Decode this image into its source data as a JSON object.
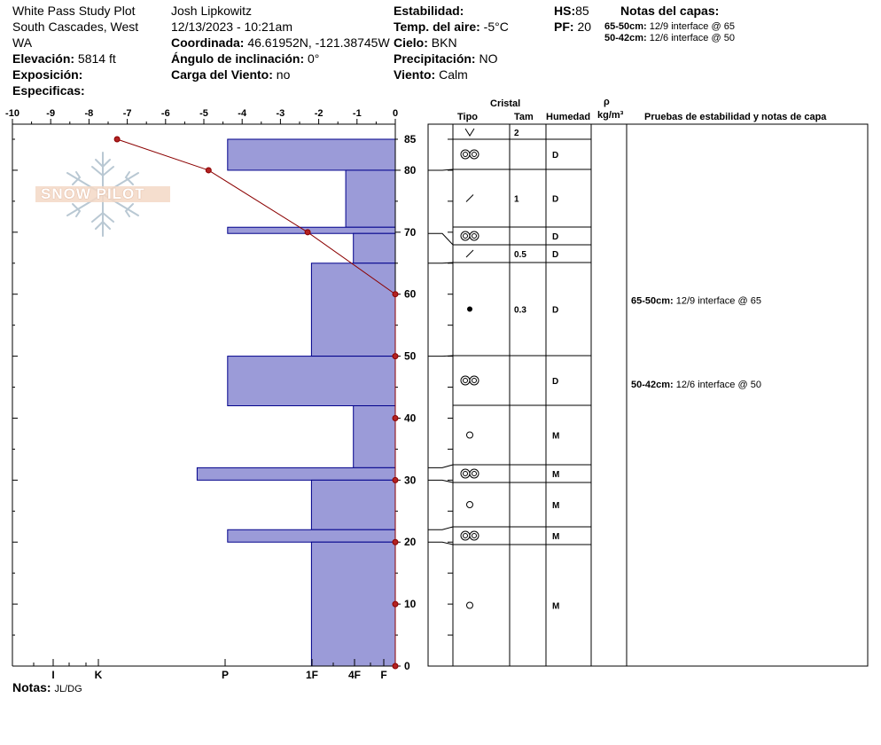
{
  "header": {
    "site": "White Pass Study Plot",
    "region_line1": "South Cascades, West",
    "region_line2": "WA",
    "elevation_label": "Elevación:",
    "elevation_value": "5814 ft",
    "aspect_label": "Exposición:",
    "specifics_label": "Especificas:",
    "observer": "Josh Lipkowitz",
    "datetime": "12/13/2023 - 10:21am",
    "coord_label": "Coordinada:",
    "coord_value": "46.61952N, -121.38745W",
    "slope_label": "Ángulo de inclinación:",
    "slope_value": "0°",
    "wind_load_label": "Carga del Viento:",
    "wind_load_value": "no",
    "stability_label": "Estabilidad:",
    "air_temp_label": "Temp. del aire:",
    "air_temp_value": "-5°C",
    "sky_label": "Cielo:",
    "sky_value": "BKN",
    "precip_label": "Precipitación:",
    "precip_value": "NO",
    "wind_label": "Viento:",
    "wind_value": "Calm",
    "hs_label": "HS:",
    "hs_value": "85",
    "pf_label": "PF:",
    "pf_value": "20",
    "layer_notes_label": "Notas del capas:",
    "layer_notes": [
      {
        "range": "65-50cm:",
        "text": "12/9 interface @ 65"
      },
      {
        "range": "50-42cm:",
        "text": "12/6 interface @ 50"
      }
    ]
  },
  "columns": {
    "crystal": "Cristal",
    "type": "Tipo",
    "size": "Tam",
    "moisture": "Humedad",
    "density_symbol": "ρ",
    "density_unit": "kg/m³",
    "tests": "Pruebas de estabilidad y notas de capa"
  },
  "footer": {
    "notes_label": "Notas:",
    "notes_value": "JL/DG"
  },
  "watermark_text": "SNOW PILOT",
  "colors": {
    "hardness_fill": "#9b9bd8",
    "hardness_stroke": "#00008b",
    "temp_line": "#8b0000",
    "temp_point": "#b22222"
  },
  "chart_data": {
    "type": "snow-profile",
    "temp_axis": {
      "ticks": [
        "-10",
        "-9",
        "-8",
        "-7",
        "-6",
        "-5",
        "-4",
        "-3",
        "-2",
        "-1",
        "0"
      ],
      "range": [
        -10,
        0
      ]
    },
    "depth_axis": {
      "range": [
        0,
        85
      ],
      "labels": [
        "0",
        "10",
        "20",
        "30",
        "40",
        "50",
        "60",
        "70",
        "80",
        "85"
      ]
    },
    "hardness_axis": [
      "I",
      "K",
      "P",
      "1F",
      "4F",
      "F"
    ],
    "temperature_profile": [
      {
        "depth": 85,
        "temp": -7.3
      },
      {
        "depth": 80,
        "temp": -4.9
      },
      {
        "depth": 70,
        "temp": -2.3
      },
      {
        "depth": 60,
        "temp": 0
      },
      {
        "depth": 50,
        "temp": 0
      },
      {
        "depth": 40,
        "temp": 0
      },
      {
        "depth": 30,
        "temp": 0
      },
      {
        "depth": 20,
        "temp": 0
      },
      {
        "depth": 10,
        "temp": 0
      },
      {
        "depth": 0,
        "temp": 0
      }
    ],
    "layers": [
      {
        "top": 85,
        "bottom": 80,
        "hardness_value": -4.4,
        "grain": "rounds",
        "size": "",
        "moisture": "D"
      },
      {
        "top": 80,
        "bottom": 70.8,
        "hardness_value": -1.3,
        "grain": "precip-particles",
        "size": "1",
        "moisture": "D"
      },
      {
        "top": 70.8,
        "bottom": 69.8,
        "hardness_value": -4.4,
        "grain": "rounds",
        "size": "",
        "moisture": "D"
      },
      {
        "top": 69.8,
        "bottom": 65,
        "hardness_value": -1.1,
        "grain": "precip-particles",
        "size": "0.5",
        "moisture": "D"
      },
      {
        "top": 65,
        "bottom": 50,
        "hardness_value": -2.2,
        "grain": "dot",
        "size": "0.3",
        "moisture": "D"
      },
      {
        "top": 50,
        "bottom": 42,
        "hardness_value": -4.4,
        "grain": "rounds",
        "size": "",
        "moisture": "D"
      },
      {
        "top": 42,
        "bottom": 32,
        "hardness_value": -1.1,
        "grain": "circle",
        "size": "",
        "moisture": "M"
      },
      {
        "top": 32,
        "bottom": 30,
        "hardness_value": -5.2,
        "grain": "rounds",
        "size": "",
        "moisture": "M"
      },
      {
        "top": 30,
        "bottom": 22,
        "hardness_value": -2.2,
        "grain": "circle",
        "size": "",
        "moisture": "M"
      },
      {
        "top": 22,
        "bottom": 20,
        "hardness_value": -4.4,
        "grain": "rounds",
        "size": "",
        "moisture": "M"
      },
      {
        "top": 20,
        "bottom": 0,
        "hardness_value": -2.2,
        "grain": "circle",
        "size": "",
        "moisture": "M"
      }
    ],
    "surface_row": {
      "grain": "surface-hoar",
      "size": "2"
    },
    "stability_notes": [
      {
        "range": "65-50cm:",
        "text": "12/9 interface @ 65",
        "depth": 59
      },
      {
        "range": "50-42cm:",
        "text": "12/6 interface @ 50",
        "depth": 45.5
      }
    ]
  }
}
